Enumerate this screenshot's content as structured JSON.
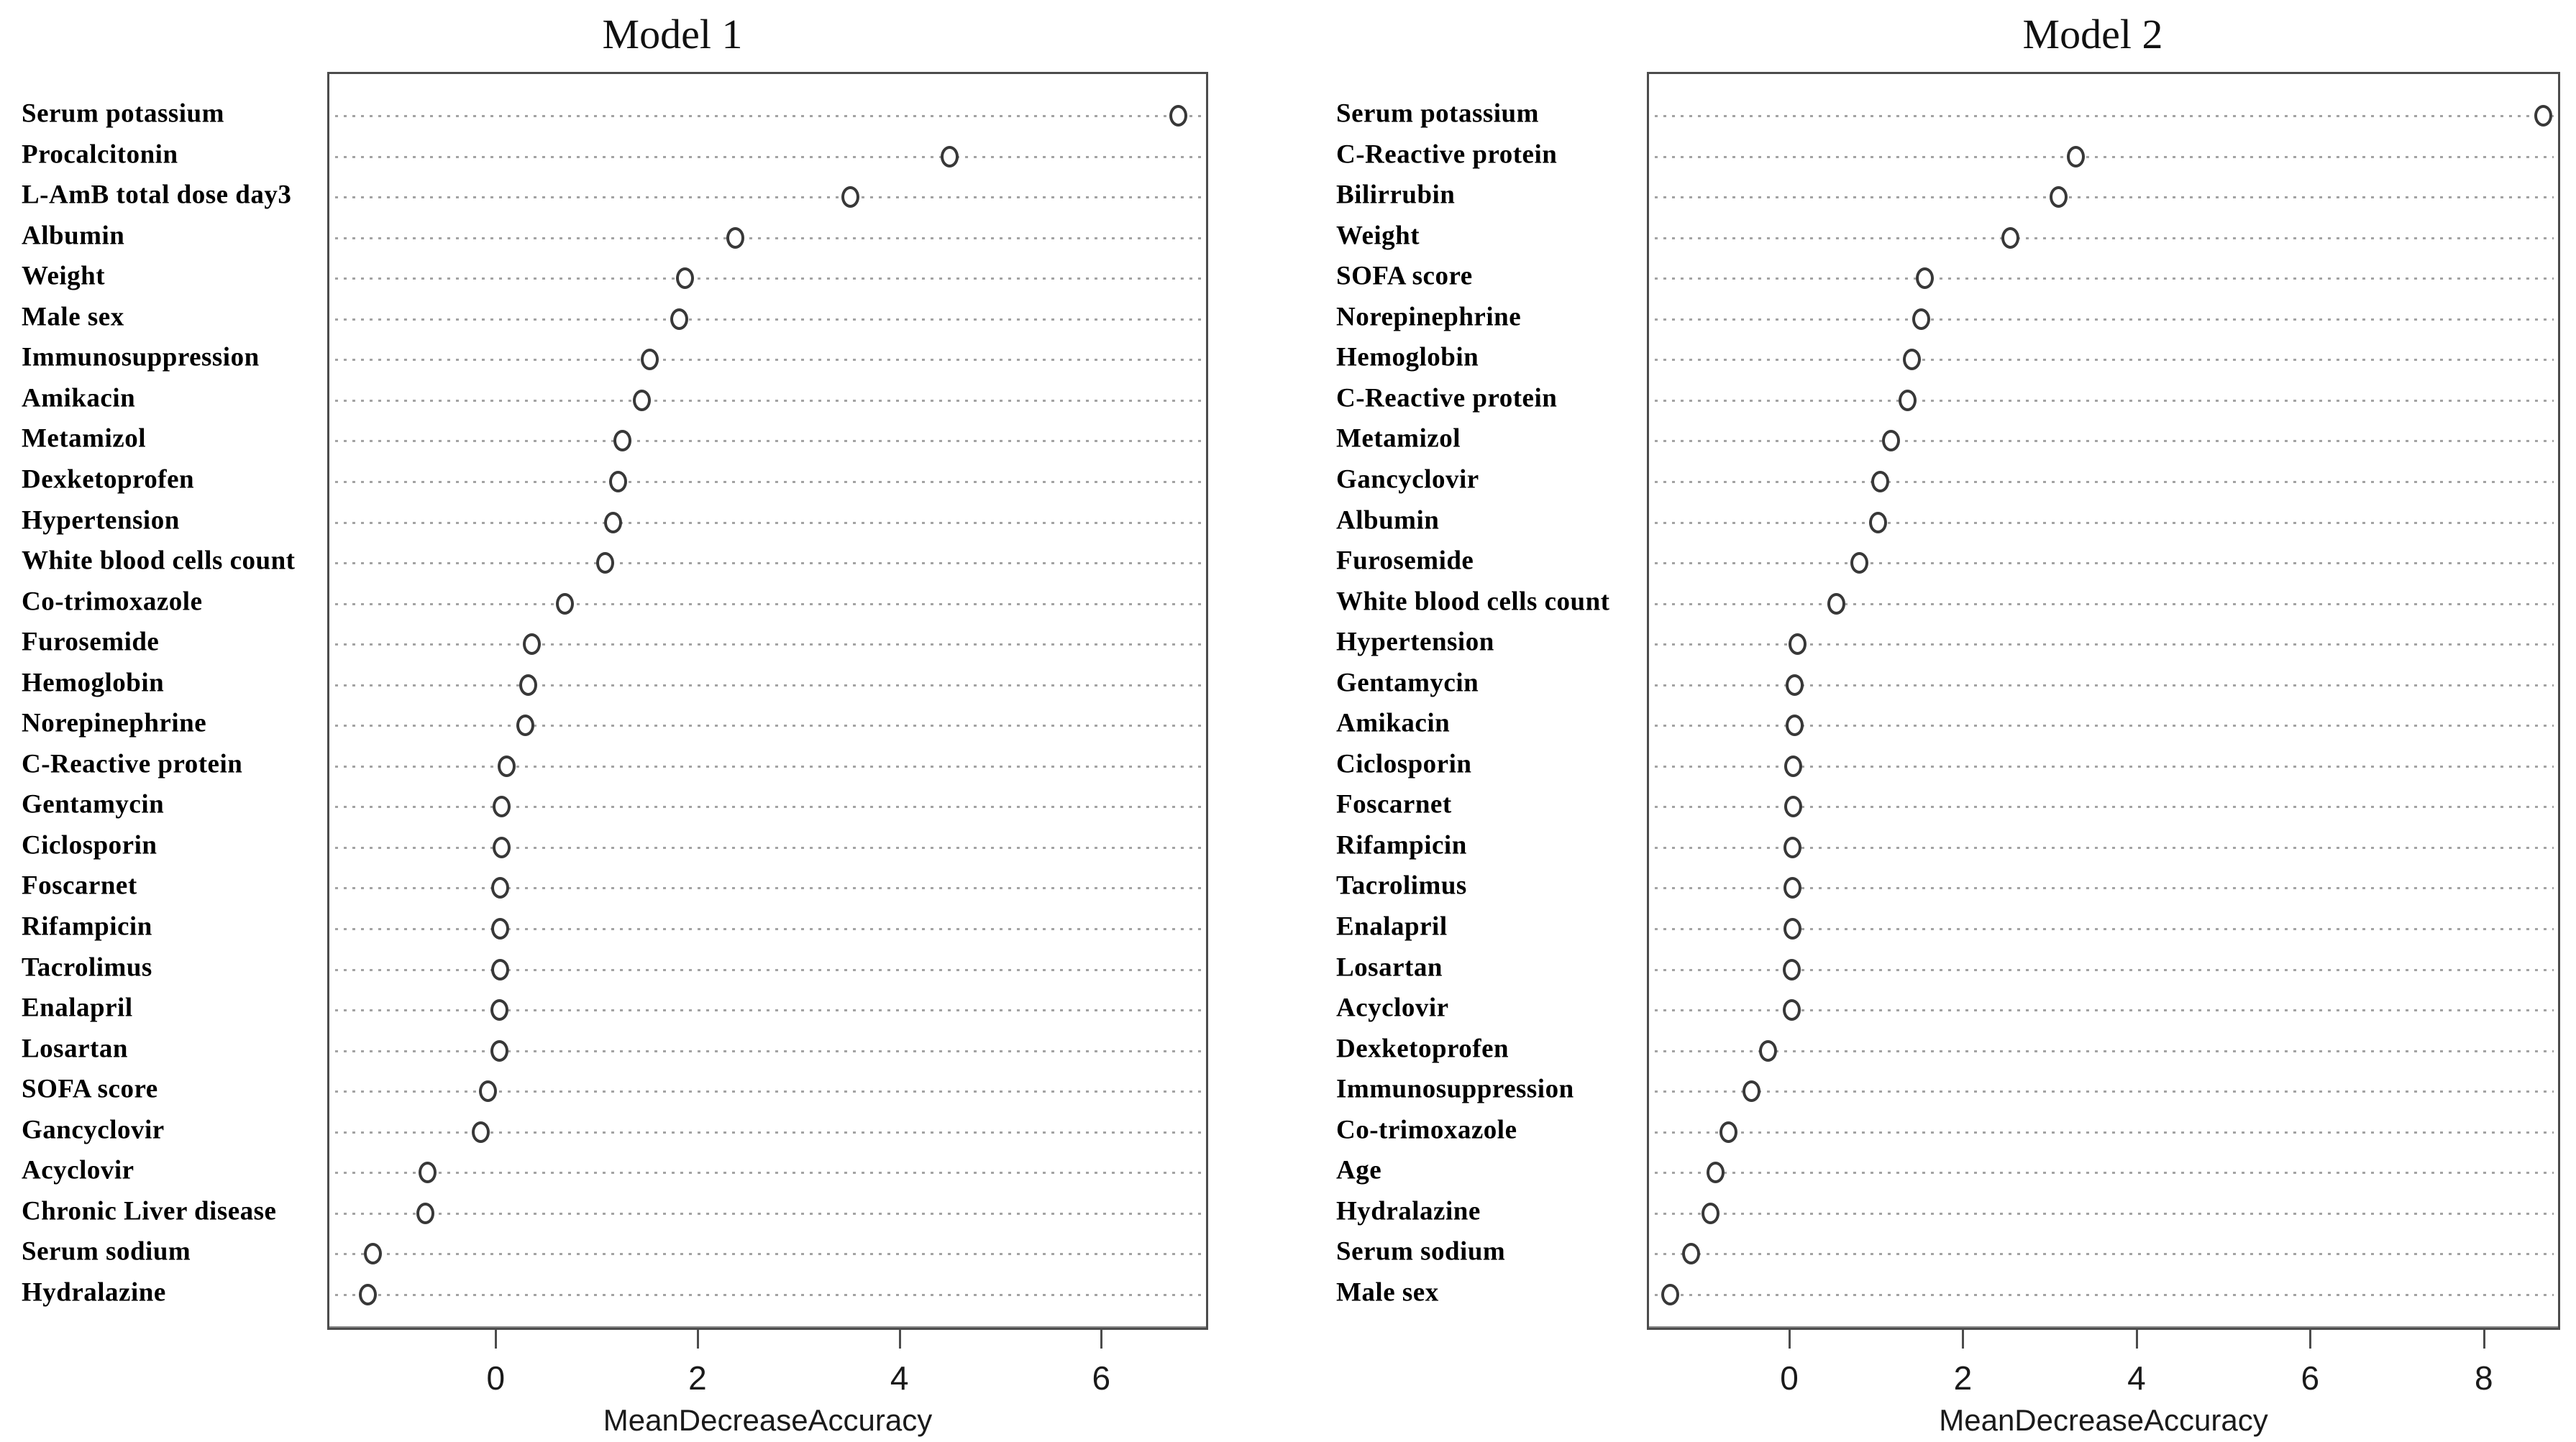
{
  "chart_data": [
    {
      "type": "scatter",
      "title": "Model 1",
      "xlabel": "MeanDecreaseAccuracy",
      "ylabel": "",
      "xlim": [
        -1.67,
        7.06
      ],
      "xticks": [
        0,
        2,
        4,
        6
      ],
      "grid": "dotted-horizontal",
      "legend": "none",
      "marker": "open-circle",
      "categories": [
        "Serum potassium",
        "Procalcitonin",
        "L-AmB total dose day3",
        "Albumin",
        "Weight",
        "Male sex",
        "Immunosuppression",
        "Amikacin",
        "Metamizol",
        "Dexketoprofen",
        "Hypertension",
        "White blood cells count",
        "Co-trimoxazole",
        "Furosemide",
        "Hemoglobin",
        "Norepinephrine",
        "C-Reactive protein",
        "Gentamycin",
        "Ciclosporin",
        "Foscarnet",
        "Rifampicin",
        "Tacrolimus",
        "Enalapril",
        "Losartan",
        "SOFA score",
        "Gancyclovir",
        "Acyclovir",
        "Chronic Liver disease",
        "Serum sodium",
        "Hydralazine"
      ],
      "values": [
        6.74,
        4.47,
        3.49,
        2.35,
        1.85,
        1.79,
        1.5,
        1.42,
        1.23,
        1.19,
        1.14,
        1.06,
        0.66,
        0.33,
        0.3,
        0.27,
        0.08,
        0.03,
        0.03,
        0.02,
        0.02,
        0.02,
        0.01,
        0.01,
        -0.1,
        -0.17,
        -0.7,
        -0.72,
        -1.24,
        -1.29
      ]
    },
    {
      "type": "scatter",
      "title": "Model 2",
      "xlabel": "MeanDecreaseAccuracy",
      "ylabel": "",
      "xlim": [
        -1.64,
        8.88
      ],
      "xticks": [
        0,
        2,
        4,
        6,
        8
      ],
      "grid": "dotted-horizontal",
      "legend": "none",
      "marker": "open-circle",
      "categories": [
        "Serum potassium",
        "C-Reactive protein",
        "Bilirrubin",
        "Weight",
        "SOFA score",
        "Norepinephrine",
        "Hemoglobin",
        "C-Reactive protein",
        "Metamizol",
        "Gancyclovir",
        "Albumin",
        "Furosemide",
        "White blood cells count",
        "Hypertension",
        "Gentamycin",
        "Amikacin",
        "Ciclosporin",
        "Foscarnet",
        "Rifampicin",
        "Tacrolimus",
        "Enalapril",
        "Losartan",
        "Acyclovir",
        "Dexketoprofen",
        "Immunosuppression",
        "Co-trimoxazole",
        "Age",
        "Hydralazine",
        "Serum sodium",
        "Male sex"
      ],
      "values": [
        8.66,
        3.27,
        3.07,
        2.52,
        1.53,
        1.49,
        1.38,
        1.33,
        1.14,
        1.02,
        0.99,
        0.78,
        0.51,
        0.07,
        0.03,
        0.03,
        0.02,
        0.02,
        0.01,
        0.01,
        0.01,
        0.0,
        0.0,
        -0.27,
        -0.46,
        -0.73,
        -0.88,
        -0.94,
        -1.16,
        -1.4
      ]
    }
  ],
  "colors": {
    "background": "#ffffff",
    "frame": "#4c4c4c",
    "gridline": "#a3a3a3",
    "marker_stroke": "#383838",
    "text": "#000000"
  }
}
